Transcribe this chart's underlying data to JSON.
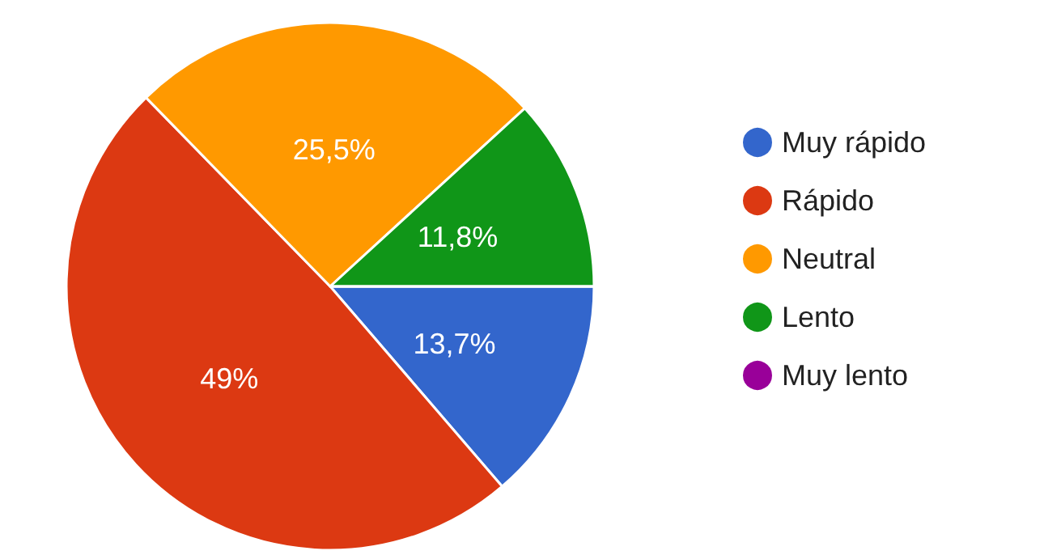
{
  "chart_data": {
    "type": "pie",
    "categories": [
      "Muy rápido",
      "Rápido",
      "Neutral",
      "Lento",
      "Muy lento"
    ],
    "values": [
      13.7,
      49,
      25.5,
      11.8,
      0
    ],
    "colors": [
      "#3366cc",
      "#dc3912",
      "#ff9900",
      "#109618",
      "#990099"
    ],
    "value_labels": [
      "13,7%",
      "49%",
      "25,5%",
      "11,8%",
      null
    ],
    "legend": "right"
  }
}
